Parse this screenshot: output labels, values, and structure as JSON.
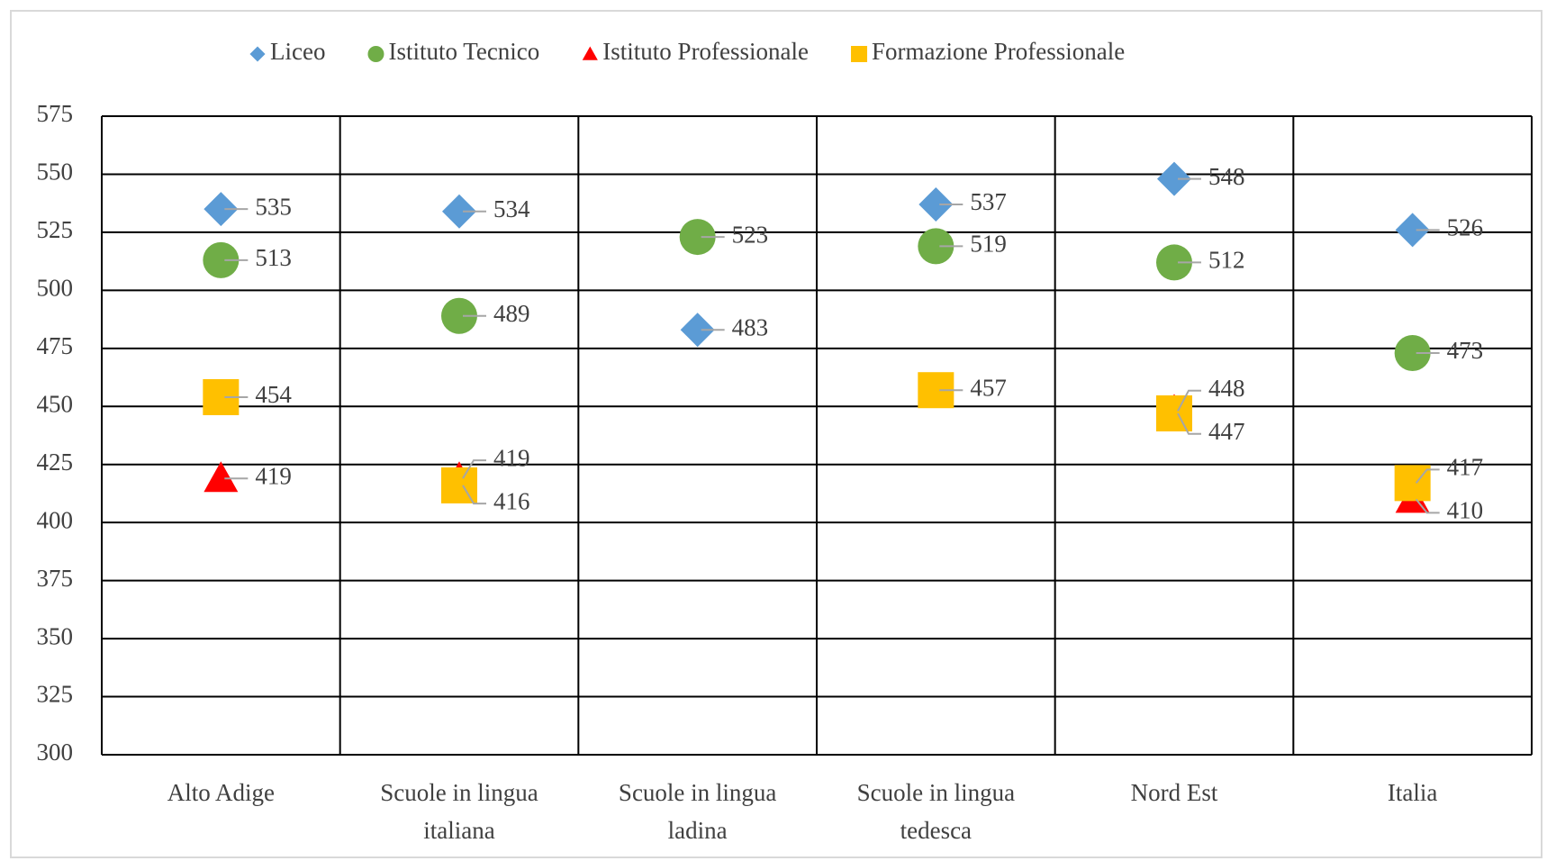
{
  "chart_data": {
    "type": "scatter",
    "categories": [
      "Alto Adige",
      "Scuole in lingua italiana",
      "Scuole in lingua ladina",
      "Scuole in lingua tedesca",
      "Nord Est",
      "Italia"
    ],
    "series": [
      {
        "name": "Liceo",
        "color": "#5b9bd5",
        "marker": "diamond",
        "values": [
          535,
          534,
          483,
          537,
          548,
          526
        ]
      },
      {
        "name": "Istituto Tecnico",
        "color": "#70ad47",
        "marker": "circle",
        "values": [
          513,
          489,
          523,
          519,
          512,
          473
        ]
      },
      {
        "name": "Istituto Professionale",
        "color": "#ff0000",
        "marker": "triangle",
        "values": [
          419,
          419,
          null,
          null,
          448,
          410
        ]
      },
      {
        "name": "Formazione Professionale",
        "color": "#ffc000",
        "marker": "square",
        "values": [
          454,
          416,
          null,
          457,
          447,
          417
        ]
      }
    ],
    "ylim": [
      300,
      575
    ],
    "yticks": [
      300,
      325,
      350,
      375,
      400,
      425,
      450,
      475,
      500,
      525,
      550,
      575
    ],
    "grid": true,
    "legend": "top"
  }
}
